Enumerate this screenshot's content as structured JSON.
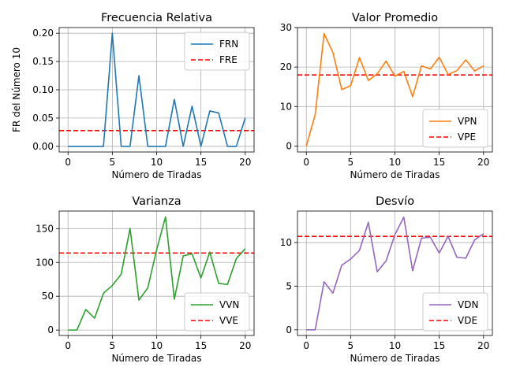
{
  "colors": {
    "blue": "#1f77b4",
    "orange": "#ff7f0e",
    "green": "#2ca02c",
    "purple": "#9467bd",
    "expected": "#ff0000",
    "grid": "#b0b0b0"
  },
  "chart_data": [
    {
      "type": "line",
      "title": "Frecuencia Relativa",
      "xlabel": "Número de Tiradas",
      "ylabel": "FR del Número 10",
      "xlim": [
        -1,
        21
      ],
      "ylim": [
        -0.01,
        0.21
      ],
      "xticks": [
        0,
        5,
        10,
        15,
        20
      ],
      "yticks": [
        0.0,
        0.05,
        0.1,
        0.15,
        0.2
      ],
      "ytick_labels": [
        "0.00",
        "0.05",
        "0.10",
        "0.15",
        "0.20"
      ],
      "grid": true,
      "legend_position": "top-right",
      "series": [
        {
          "name": "FRN",
          "style": "solid",
          "color": "#1f77b4",
          "x": [
            0,
            1,
            2,
            3,
            4,
            5,
            6,
            7,
            8,
            9,
            10,
            11,
            12,
            13,
            14,
            15,
            16,
            17,
            18,
            19,
            20
          ],
          "values": [
            0,
            0,
            0,
            0,
            0,
            0.2,
            0,
            0,
            0.125,
            0,
            0,
            0,
            0.083,
            0,
            0.071,
            0,
            0.0625,
            0.059,
            0,
            0,
            0.05
          ]
        }
      ],
      "reference_line": {
        "name": "FRE",
        "style": "dashed",
        "color": "#ff0000",
        "value": 0.0278
      }
    },
    {
      "type": "line",
      "title": "Valor Promedio",
      "xlabel": "Número de Tiradas",
      "ylabel": "",
      "xlim": [
        -1,
        21
      ],
      "ylim": [
        -1.5,
        30
      ],
      "xticks": [
        0,
        5,
        10,
        15,
        20
      ],
      "yticks": [
        0,
        10,
        20,
        30
      ],
      "ytick_labels": [
        "0",
        "10",
        "20",
        "30"
      ],
      "grid": true,
      "legend_position": "bottom-right",
      "series": [
        {
          "name": "VPN",
          "style": "solid",
          "color": "#ff7f0e",
          "x": [
            0,
            1,
            2,
            3,
            4,
            5,
            6,
            7,
            8,
            9,
            10,
            11,
            12,
            13,
            14,
            15,
            16,
            17,
            18,
            19,
            20
          ],
          "values": [
            0,
            8,
            28.5,
            23.7,
            14.3,
            15.3,
            22.4,
            16.6,
            18.3,
            21.5,
            17.7,
            18.9,
            12.5,
            20.3,
            19.5,
            22.5,
            18.1,
            19.1,
            21.8,
            19,
            20.3
          ]
        }
      ],
      "reference_line": {
        "name": "VPE",
        "style": "dashed",
        "color": "#ff0000",
        "value": 18
      }
    },
    {
      "type": "line",
      "title": "Varianza",
      "xlabel": "Número de Tiradas",
      "ylabel": "",
      "xlim": [
        -1,
        21
      ],
      "ylim": [
        -8,
        176
      ],
      "xticks": [
        0,
        5,
        10,
        15,
        20
      ],
      "yticks": [
        0,
        50,
        100,
        150
      ],
      "ytick_labels": [
        "0",
        "50",
        "100",
        "150"
      ],
      "grid": true,
      "legend_position": "bottom-right",
      "series": [
        {
          "name": "VVN",
          "style": "solid",
          "color": "#2ca02c",
          "x": [
            0,
            1,
            2,
            3,
            4,
            5,
            6,
            7,
            8,
            9,
            10,
            11,
            12,
            13,
            14,
            15,
            16,
            17,
            18,
            19,
            20
          ],
          "values": [
            0,
            0,
            30.3,
            17.6,
            54.5,
            66,
            82.6,
            150.3,
            44.3,
            62.3,
            118.7,
            167.2,
            45.7,
            109.7,
            112.7,
            77,
            115.3,
            69.1,
            67.5,
            105.9,
            120.2
          ]
        }
      ],
      "reference_line": {
        "name": "VVE",
        "style": "dashed",
        "color": "#ff0000",
        "value": 114
      }
    },
    {
      "type": "line",
      "title": "Desvío",
      "xlabel": "Número de Tiradas",
      "ylabel": "",
      "xlim": [
        -1,
        21
      ],
      "ylim": [
        -0.65,
        13.6
      ],
      "xticks": [
        0,
        5,
        10,
        15,
        20
      ],
      "yticks": [
        0,
        5,
        10
      ],
      "ytick_labels": [
        "0",
        "5",
        "10"
      ],
      "grid": true,
      "legend_position": "bottom-right",
      "series": [
        {
          "name": "VDN",
          "style": "solid",
          "color": "#9467bd",
          "x": [
            0,
            1,
            2,
            3,
            4,
            5,
            6,
            7,
            8,
            9,
            10,
            11,
            12,
            13,
            14,
            15,
            16,
            17,
            18,
            19,
            20
          ],
          "values": [
            0,
            0,
            5.5,
            4.2,
            7.4,
            8.1,
            9.1,
            12.3,
            6.65,
            7.9,
            10.9,
            12.9,
            6.76,
            10.5,
            10.6,
            8.8,
            10.7,
            8.3,
            8.2,
            10.3,
            11
          ]
        }
      ],
      "reference_line": {
        "name": "VDE",
        "style": "dashed",
        "color": "#ff0000",
        "value": 10.7
      }
    }
  ]
}
